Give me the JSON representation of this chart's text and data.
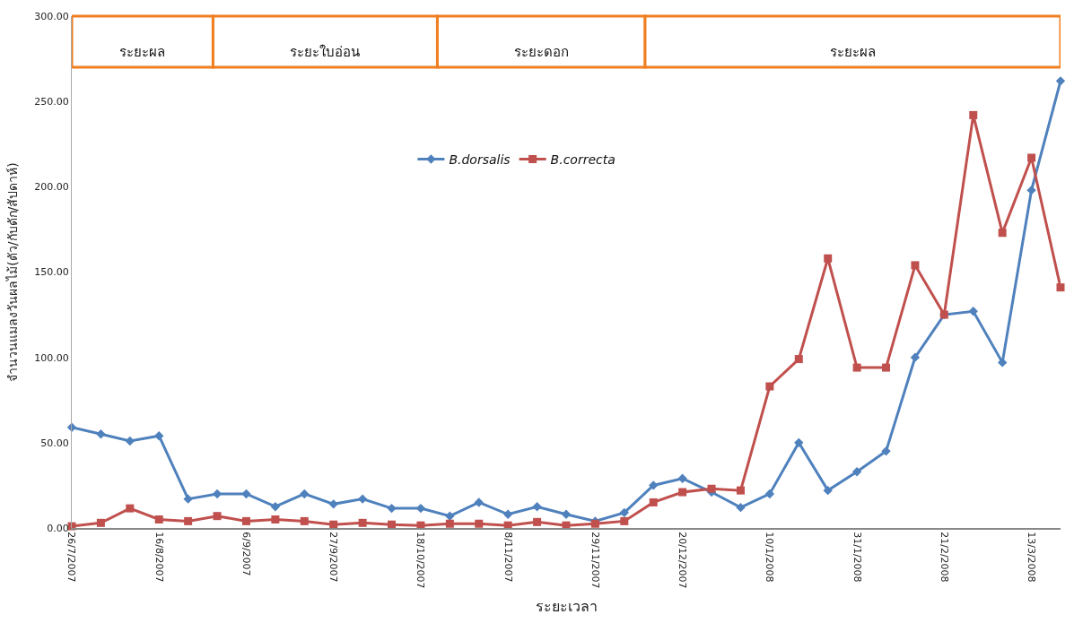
{
  "chart_data": {
    "type": "line",
    "xlabel": "ระยะเวลา",
    "ylabel": "จำนวนแมลงวันผลไม้(ตัว/กับดัก/สัปดาห์)",
    "x": [
      "2007-07-26",
      "2007-08-02",
      "2007-08-09",
      "2007-08-16",
      "2007-08-23",
      "2007-08-30",
      "2007-09-06",
      "2007-09-13",
      "2007-09-20",
      "2007-09-27",
      "2007-10-04",
      "2007-10-11",
      "2007-10-18",
      "2007-10-25",
      "2007-11-01",
      "2007-11-08",
      "2007-11-15",
      "2007-11-22",
      "2007-11-29",
      "2007-12-06",
      "2007-12-13",
      "2007-12-20",
      "2007-12-27",
      "2008-01-03",
      "2008-01-10",
      "2008-01-17",
      "2008-01-24",
      "2008-01-31",
      "2008-02-07",
      "2008-02-14",
      "2008-02-21",
      "2008-02-28",
      "2008-03-06",
      "2008-03-13",
      "2008-03-20"
    ],
    "series": [
      {
        "name": "B.dorsalis",
        "color": "#4f81bd",
        "marker": "diamond",
        "values": [
          59,
          55,
          51,
          54,
          17,
          20,
          20,
          12.5,
          20,
          14,
          17,
          11.5,
          11.5,
          7,
          15,
          8,
          12.5,
          8,
          4,
          9,
          25,
          29,
          21,
          12,
          20,
          50,
          22,
          33,
          45,
          100,
          125,
          127,
          97,
          198,
          262
        ]
      },
      {
        "name": "B.correcta",
        "color": "#c0504d",
        "marker": "square",
        "values": [
          1,
          3,
          11.5,
          5,
          4,
          7,
          4,
          5,
          4,
          2,
          3,
          2,
          1.5,
          2.5,
          2.5,
          1.5,
          3.5,
          1.5,
          2.5,
          4,
          15,
          21,
          23,
          22,
          83,
          99,
          158,
          94,
          94,
          154,
          125,
          242,
          173,
          217,
          141
        ]
      }
    ],
    "xlim": [
      "2007-07-26",
      "2008-03-20"
    ],
    "xticks": [
      {
        "value": "2007-07-26",
        "label": "26/7/2007"
      },
      {
        "value": "2007-08-16",
        "label": "16/8/2007"
      },
      {
        "value": "2007-09-06",
        "label": "6/9/2007"
      },
      {
        "value": "2007-09-27",
        "label": "27/9/2007"
      },
      {
        "value": "2007-10-18",
        "label": "18/10/2007"
      },
      {
        "value": "2007-11-08",
        "label": "8/11/2007"
      },
      {
        "value": "2007-11-29",
        "label": "29/11/2007"
      },
      {
        "value": "2007-12-20",
        "label": "20/12/2007"
      },
      {
        "value": "2008-01-10",
        "label": "10/1/2008"
      },
      {
        "value": "2008-01-31",
        "label": "31/1/2008"
      },
      {
        "value": "2008-02-21",
        "label": "21/2/2008"
      },
      {
        "value": "2008-03-13",
        "label": "13/3/2008"
      }
    ],
    "ylim": [
      0,
      300
    ],
    "yticks": [
      {
        "value": 0,
        "label": "0.00"
      },
      {
        "value": 50,
        "label": "50.00"
      },
      {
        "value": 100,
        "label": "100.00"
      },
      {
        "value": 150,
        "label": "150.00"
      },
      {
        "value": 200,
        "label": "200.00"
      },
      {
        "value": 250,
        "label": "250.00"
      },
      {
        "value": 300,
        "label": "300.00"
      }
    ],
    "bands": [
      {
        "axis": "x",
        "from": "2007-07-26",
        "to": "2007-08-29",
        "label": "ระยะผล",
        "color": "#f07f21"
      },
      {
        "axis": "x",
        "from": "2007-08-29",
        "to": "2007-10-22",
        "label": "ระยะใบอ่อน",
        "color": "#f07f21"
      },
      {
        "axis": "x",
        "from": "2007-10-22",
        "to": "2007-12-11",
        "label": "ระยะดอก",
        "color": "#f07f21"
      },
      {
        "axis": "x",
        "from": "2007-12-11",
        "to": "2008-03-20",
        "label": "ระยะผล",
        "color": "#f07f21"
      }
    ],
    "legend": "top"
  }
}
